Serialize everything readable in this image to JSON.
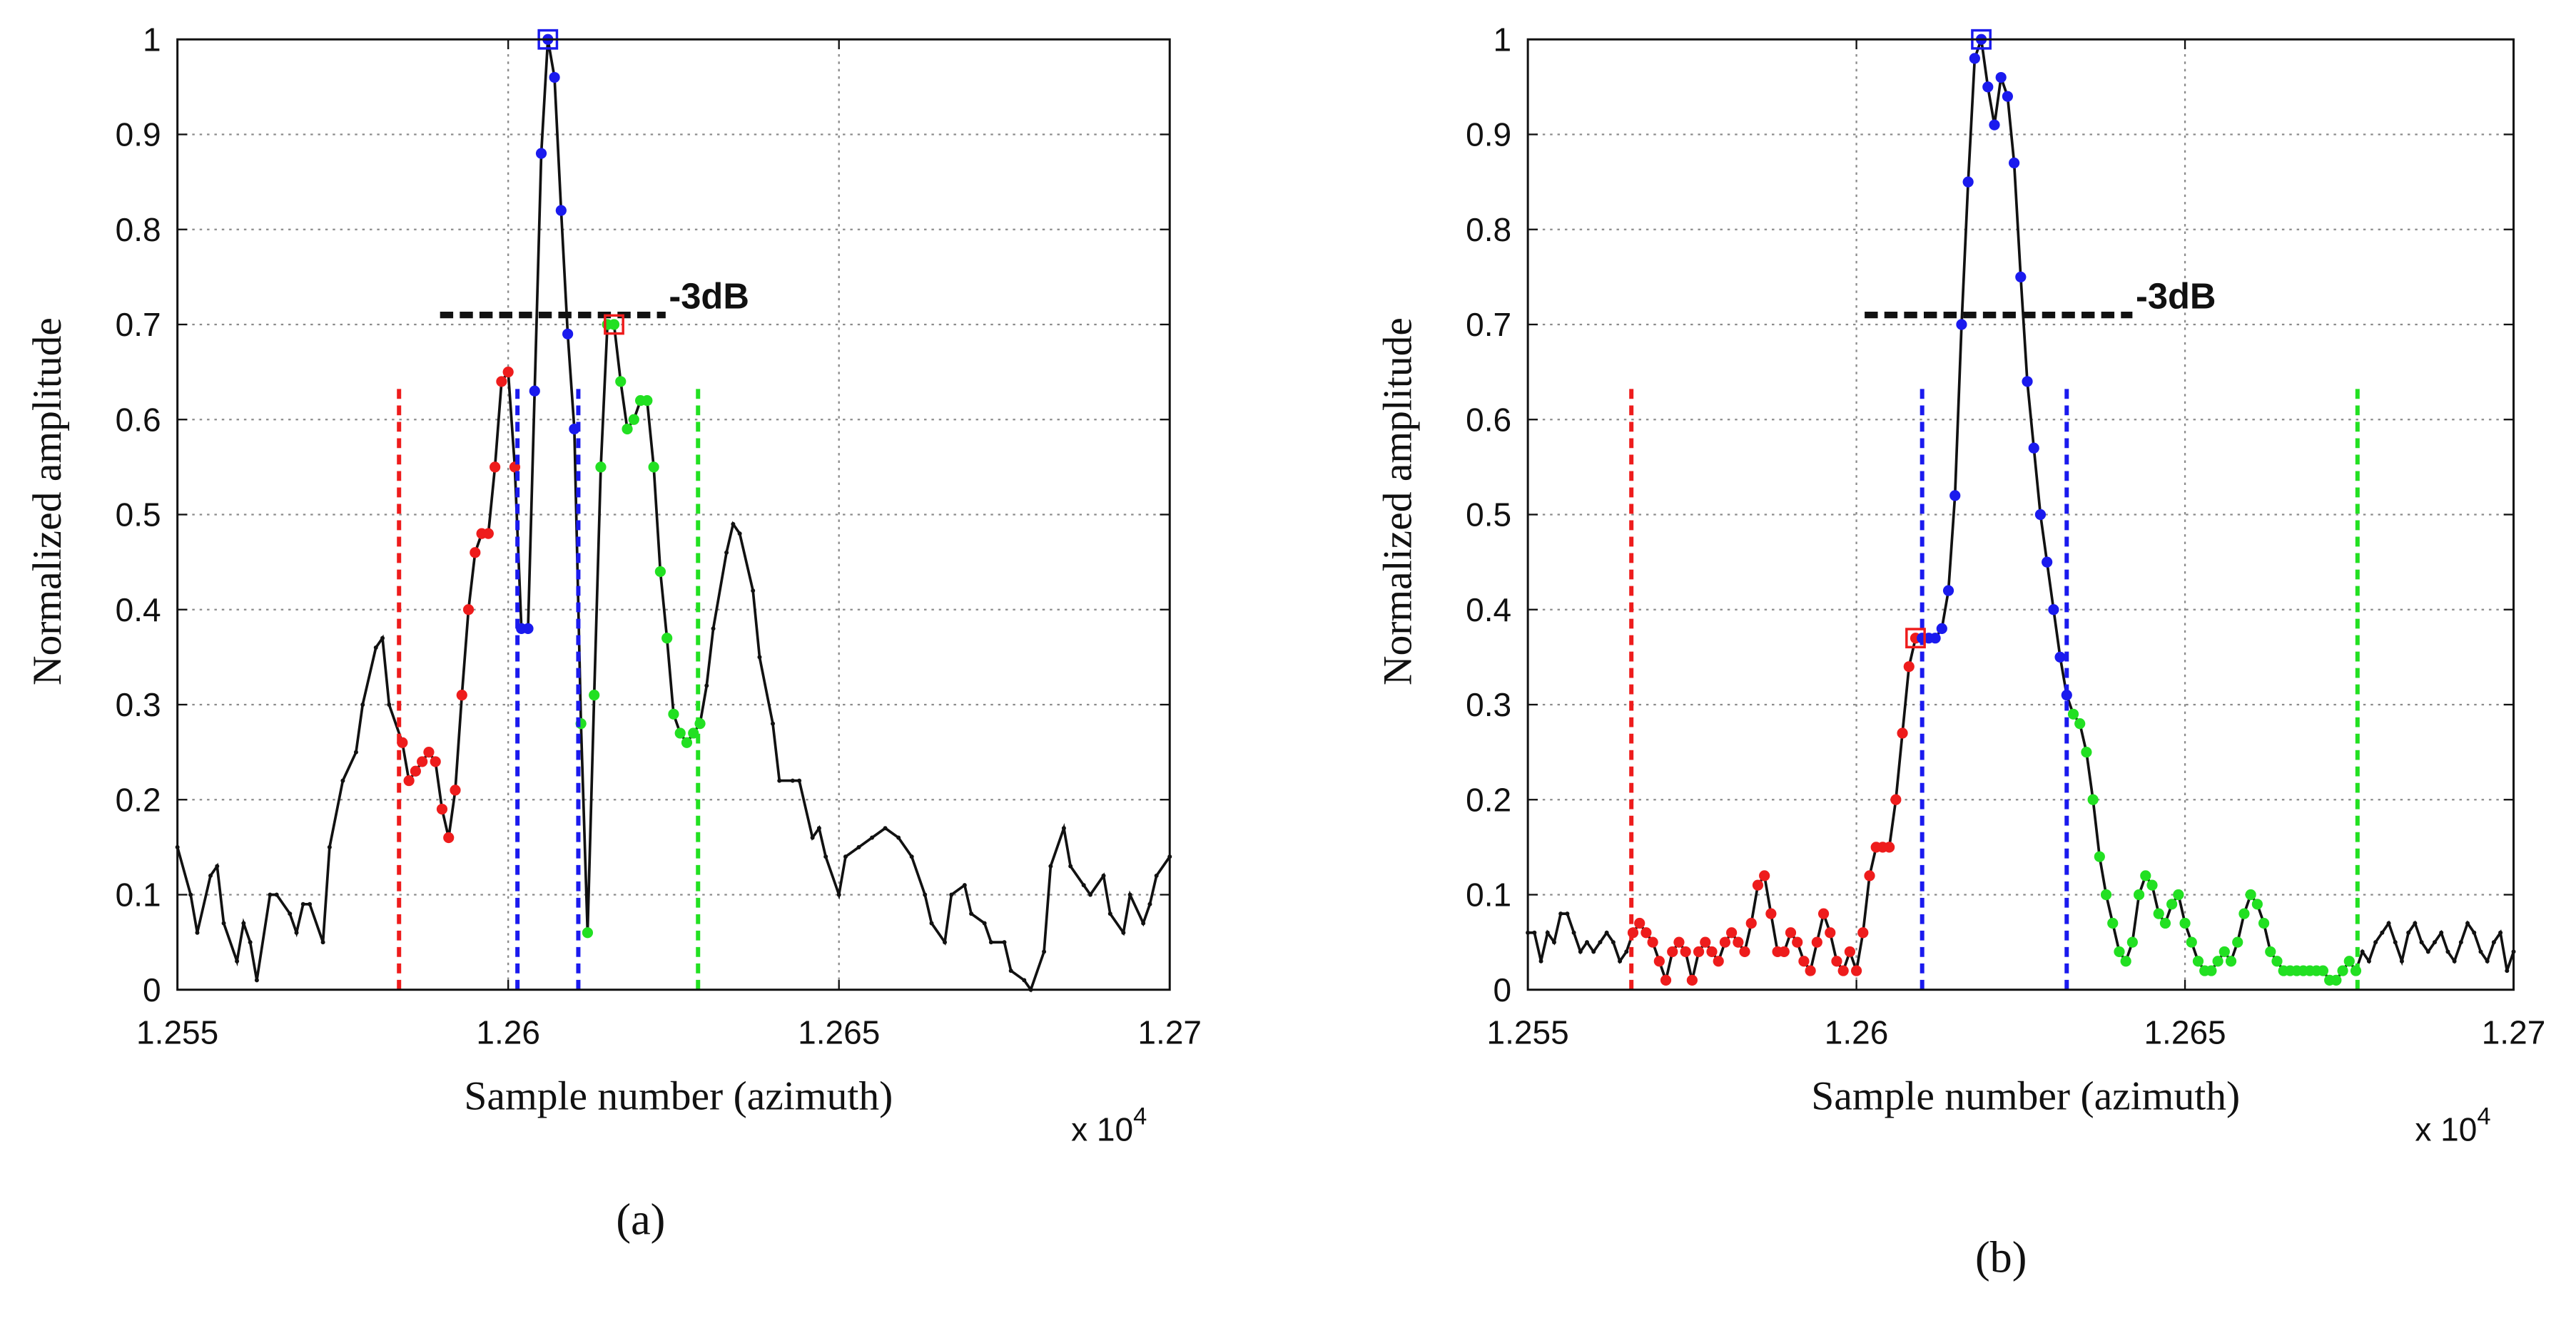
{
  "chart_data": [
    {
      "type": "line",
      "panel_label": "(a)",
      "xlabel": "Sample number (azimuth)",
      "ylabel": "Normalized amplitude",
      "x_multiplier": {
        "base": "x 10",
        "exponent": "4"
      },
      "xlim": [
        12550,
        12700
      ],
      "ylim": [
        0,
        1
      ],
      "xticks": [
        {
          "value": 12550,
          "label": "1.255"
        },
        {
          "value": 12600,
          "label": "1.26"
        },
        {
          "value": 12650,
          "label": "1.265"
        },
        {
          "value": 12700,
          "label": "1.27"
        }
      ],
      "yticks": [
        0,
        0.1,
        0.2,
        0.3,
        0.4,
        0.5,
        0.6,
        0.7,
        0.8,
        0.9,
        1
      ],
      "grid": true,
      "color": "#111111",
      "x": [
        12550,
        12552,
        12553,
        12555,
        12556,
        12557,
        12559,
        12560,
        12561,
        12562,
        12564,
        12565,
        12567,
        12568,
        12569,
        12570,
        12572,
        12573,
        12575,
        12577,
        12578,
        12580,
        12581,
        12582,
        12584,
        12585,
        12586,
        12587,
        12588,
        12589,
        12590,
        12591,
        12592,
        12593,
        12594,
        12595,
        12596,
        12597,
        12598,
        12599,
        12600,
        12601,
        12602,
        12603,
        12604,
        12605,
        12606,
        12607,
        12608,
        12609,
        12610,
        12611,
        12612,
        12613,
        12614,
        12615,
        12616,
        12617,
        12618,
        12619,
        12620,
        12621,
        12622,
        12623,
        12624,
        12625,
        12626,
        12627,
        12628,
        12629,
        12630,
        12631,
        12633,
        12634,
        12635,
        12637,
        12638,
        12640,
        12641,
        12643,
        12644,
        12646,
        12647,
        12648,
        12650,
        12651,
        12653,
        12655,
        12657,
        12659,
        12661,
        12663,
        12664,
        12666,
        12667,
        12669,
        12670,
        12672,
        12673,
        12675,
        12676,
        12678,
        12679,
        12681,
        12682,
        12684,
        12685,
        12687,
        12688,
        12690,
        12691,
        12693,
        12694,
        12696,
        12697,
        12698,
        12700
      ],
      "values": [
        0.15,
        0.1,
        0.06,
        0.12,
        0.13,
        0.07,
        0.03,
        0.07,
        0.05,
        0.01,
        0.1,
        0.1,
        0.08,
        0.06,
        0.09,
        0.09,
        0.05,
        0.15,
        0.22,
        0.25,
        0.3,
        0.36,
        0.37,
        0.3,
        0.26,
        0.22,
        0.23,
        0.24,
        0.25,
        0.24,
        0.19,
        0.16,
        0.21,
        0.31,
        0.4,
        0.46,
        0.48,
        0.48,
        0.55,
        0.64,
        0.65,
        0.55,
        0.38,
        0.38,
        0.63,
        0.88,
        1.0,
        0.96,
        0.82,
        0.69,
        0.59,
        0.28,
        0.06,
        0.31,
        0.55,
        0.7,
        0.7,
        0.64,
        0.59,
        0.6,
        0.62,
        0.62,
        0.55,
        0.44,
        0.37,
        0.29,
        0.27,
        0.26,
        0.27,
        0.28,
        0.32,
        0.38,
        0.46,
        0.49,
        0.48,
        0.42,
        0.35,
        0.28,
        0.22,
        0.22,
        0.22,
        0.16,
        0.17,
        0.14,
        0.1,
        0.14,
        0.15,
        0.16,
        0.17,
        0.16,
        0.14,
        0.1,
        0.07,
        0.05,
        0.1,
        0.11,
        0.08,
        0.07,
        0.05,
        0.05,
        0.02,
        0.01,
        0,
        0.04,
        0.13,
        0.17,
        0.13,
        0.11,
        0.1,
        0.12,
        0.08,
        0.06,
        0.1,
        0.07,
        0.09,
        0.12,
        0.14
      ],
      "point_groups": [
        {
          "color": "#ee1c1c",
          "x": [
            12584,
            12585,
            12586,
            12587,
            12588,
            12589,
            12590,
            12591,
            12592,
            12593,
            12594,
            12595,
            12596,
            12597,
            12598,
            12599,
            12600,
            12601
          ],
          "values": [
            0.26,
            0.22,
            0.23,
            0.24,
            0.25,
            0.24,
            0.19,
            0.16,
            0.21,
            0.31,
            0.4,
            0.46,
            0.48,
            0.48,
            0.55,
            0.64,
            0.65,
            0.55
          ]
        },
        {
          "color": "#1a1aee",
          "x": [
            12602,
            12603,
            12604,
            12605,
            12606,
            12607,
            12608,
            12609,
            12610
          ],
          "values": [
            0.38,
            0.38,
            0.63,
            0.88,
            1.0,
            0.96,
            0.82,
            0.69,
            0.59
          ]
        },
        {
          "color": "#22e022",
          "x": [
            12611,
            12612,
            12613,
            12614,
            12615,
            12616,
            12617,
            12618,
            12619,
            12620,
            12621,
            12622,
            12623,
            12624,
            12625,
            12626,
            12627,
            12628,
            12629
          ],
          "values": [
            0.28,
            0.06,
            0.31,
            0.55,
            0.7,
            0.7,
            0.64,
            0.59,
            0.6,
            0.62,
            0.62,
            0.55,
            0.44,
            0.37,
            0.29,
            0.27,
            0.26,
            0.27,
            0.28
          ]
        }
      ],
      "boundaries": [
        {
          "color": "#ee1c1c",
          "x": 12583.5,
          "top": 0.635
        },
        {
          "color": "#1a1aee",
          "x": 12601.4,
          "top": 0.635
        },
        {
          "color": "#1a1aee",
          "x": 12610.6,
          "top": 0.635
        },
        {
          "color": "#22e022",
          "x": 12628.7,
          "top": 0.635
        }
      ],
      "threshold": {
        "label": "-3dB",
        "value": 0.71,
        "x": [
          12589.7,
          12623.8
        ]
      },
      "peaks": [
        {
          "color": "#1a1aee",
          "x": 12606,
          "value": 1.0
        },
        {
          "color": "#ee1c1c",
          "x": 12616,
          "value": 0.7
        }
      ]
    },
    {
      "type": "line",
      "panel_label": "(b)",
      "xlabel": "Sample number (azimuth)",
      "ylabel": "Normalized amplitude",
      "x_multiplier": {
        "base": "x 10",
        "exponent": "4"
      },
      "xlim": [
        12550,
        12700
      ],
      "ylim": [
        0,
        1
      ],
      "xticks": [
        {
          "value": 12550,
          "label": "1.255"
        },
        {
          "value": 12600,
          "label": "1.26"
        },
        {
          "value": 12650,
          "label": "1.265"
        },
        {
          "value": 12700,
          "label": "1.27"
        }
      ],
      "yticks": [
        0,
        0.1,
        0.2,
        0.3,
        0.4,
        0.5,
        0.6,
        0.7,
        0.8,
        0.9,
        1
      ],
      "grid": true,
      "color": "#111111",
      "x": [
        12550,
        12551,
        12552,
        12553,
        12554,
        12555,
        12556,
        12557,
        12558,
        12559,
        12560,
        12561,
        12562,
        12563,
        12564,
        12565,
        12566,
        12567,
        12568,
        12569,
        12570,
        12571,
        12572,
        12573,
        12574,
        12575,
        12576,
        12577,
        12578,
        12579,
        12580,
        12581,
        12582,
        12583,
        12584,
        12585,
        12586,
        12587,
        12588,
        12589,
        12590,
        12591,
        12592,
        12593,
        12594,
        12595,
        12596,
        12597,
        12598,
        12599,
        12600,
        12601,
        12602,
        12603,
        12604,
        12605,
        12606,
        12607,
        12608,
        12609,
        12610,
        12611,
        12612,
        12613,
        12614,
        12615,
        12616,
        12617,
        12618,
        12619,
        12620,
        12621,
        12622,
        12623,
        12624,
        12625,
        12626,
        12627,
        12628,
        12629,
        12630,
        12631,
        12632,
        12633,
        12634,
        12635,
        12636,
        12637,
        12638,
        12639,
        12640,
        12641,
        12642,
        12643,
        12644,
        12645,
        12646,
        12647,
        12648,
        12649,
        12650,
        12651,
        12652,
        12653,
        12654,
        12655,
        12656,
        12657,
        12658,
        12659,
        12660,
        12661,
        12662,
        12663,
        12664,
        12665,
        12666,
        12667,
        12668,
        12669,
        12670,
        12671,
        12672,
        12673,
        12674,
        12675,
        12676,
        12677,
        12678,
        12679,
        12680,
        12681,
        12682,
        12683,
        12684,
        12685,
        12686,
        12687,
        12688,
        12689,
        12690,
        12691,
        12692,
        12693,
        12694,
        12695,
        12696,
        12697,
        12698,
        12699,
        12700
      ],
      "values": [
        0.06,
        0.06,
        0.03,
        0.06,
        0.05,
        0.08,
        0.08,
        0.06,
        0.04,
        0.05,
        0.04,
        0.05,
        0.06,
        0.05,
        0.03,
        0.04,
        0.06,
        0.07,
        0.06,
        0.05,
        0.03,
        0.01,
        0.04,
        0.05,
        0.04,
        0.01,
        0.04,
        0.05,
        0.04,
        0.03,
        0.05,
        0.06,
        0.05,
        0.04,
        0.07,
        0.11,
        0.12,
        0.08,
        0.04,
        0.04,
        0.06,
        0.05,
        0.03,
        0.02,
        0.05,
        0.08,
        0.06,
        0.03,
        0.02,
        0.04,
        0.02,
        0.06,
        0.12,
        0.15,
        0.15,
        0.15,
        0.2,
        0.27,
        0.34,
        0.37,
        0.37,
        0.37,
        0.37,
        0.38,
        0.42,
        0.52,
        0.7,
        0.85,
        0.98,
        1.0,
        0.95,
        0.91,
        0.96,
        0.94,
        0.87,
        0.75,
        0.64,
        0.57,
        0.5,
        0.45,
        0.4,
        0.35,
        0.31,
        0.29,
        0.28,
        0.25,
        0.2,
        0.14,
        0.1,
        0.07,
        0.04,
        0.03,
        0.05,
        0.1,
        0.12,
        0.11,
        0.08,
        0.07,
        0.09,
        0.1,
        0.07,
        0.05,
        0.03,
        0.02,
        0.02,
        0.03,
        0.04,
        0.03,
        0.05,
        0.08,
        0.1,
        0.09,
        0.07,
        0.04,
        0.03,
        0.02,
        0.02,
        0.02,
        0.02,
        0.02,
        0.02,
        0.02,
        0.01,
        0.01,
        0.02,
        0.03,
        0.02,
        0.04,
        0.03,
        0.05,
        0.06,
        0.07,
        0.05,
        0.03,
        0.06,
        0.07,
        0.05,
        0.04,
        0.05,
        0.06,
        0.04,
        0.03,
        0.05,
        0.07,
        0.06,
        0.04,
        0.03,
        0.05,
        0.06,
        0.02,
        0.04
      ],
      "point_groups": [
        {
          "color": "#ee1c1c",
          "x": [
            12566,
            12567,
            12568,
            12569,
            12570,
            12571,
            12572,
            12573,
            12574,
            12575,
            12576,
            12577,
            12578,
            12579,
            12580,
            12581,
            12582,
            12583,
            12584,
            12585,
            12586,
            12587,
            12588,
            12589,
            12590,
            12591,
            12592,
            12593,
            12594,
            12595,
            12596,
            12597,
            12598,
            12599,
            12600,
            12601,
            12602,
            12603,
            12604,
            12605,
            12606,
            12607,
            12608,
            12609
          ],
          "values": [
            0.06,
            0.07,
            0.06,
            0.05,
            0.03,
            0.01,
            0.04,
            0.05,
            0.04,
            0.01,
            0.04,
            0.05,
            0.04,
            0.03,
            0.05,
            0.06,
            0.05,
            0.04,
            0.07,
            0.11,
            0.12,
            0.08,
            0.04,
            0.04,
            0.06,
            0.05,
            0.03,
            0.02,
            0.05,
            0.08,
            0.06,
            0.03,
            0.02,
            0.04,
            0.02,
            0.06,
            0.12,
            0.15,
            0.15,
            0.15,
            0.2,
            0.27,
            0.34,
            0.37
          ]
        },
        {
          "color": "#1a1aee",
          "x": [
            12610,
            12611,
            12612,
            12613,
            12614,
            12615,
            12616,
            12617,
            12618,
            12619,
            12620,
            12621,
            12622,
            12623,
            12624,
            12625,
            12626,
            12627,
            12628,
            12629,
            12630,
            12631,
            12632
          ],
          "values": [
            0.37,
            0.37,
            0.37,
            0.38,
            0.42,
            0.52,
            0.7,
            0.85,
            0.98,
            1.0,
            0.95,
            0.91,
            0.96,
            0.94,
            0.87,
            0.75,
            0.64,
            0.57,
            0.5,
            0.45,
            0.4,
            0.35,
            0.31
          ]
        },
        {
          "color": "#22e022",
          "x": [
            12633,
            12634,
            12635,
            12636,
            12637,
            12638,
            12639,
            12640,
            12641,
            12642,
            12643,
            12644,
            12645,
            12646,
            12647,
            12648,
            12649,
            12650,
            12651,
            12652,
            12653,
            12654,
            12655,
            12656,
            12657,
            12658,
            12659,
            12660,
            12661,
            12662,
            12663,
            12664,
            12665,
            12666,
            12667,
            12668,
            12669,
            12670,
            12671,
            12672,
            12673,
            12674,
            12675,
            12676
          ],
          "values": [
            0.29,
            0.28,
            0.25,
            0.2,
            0.14,
            0.1,
            0.07,
            0.04,
            0.03,
            0.05,
            0.1,
            0.12,
            0.11,
            0.08,
            0.07,
            0.09,
            0.1,
            0.07,
            0.05,
            0.03,
            0.02,
            0.02,
            0.03,
            0.04,
            0.03,
            0.05,
            0.08,
            0.1,
            0.09,
            0.07,
            0.04,
            0.03,
            0.02,
            0.02,
            0.02,
            0.02,
            0.02,
            0.02,
            0.02,
            0.01,
            0.01,
            0.02,
            0.03,
            0.02
          ]
        }
      ],
      "boundaries": [
        {
          "color": "#ee1c1c",
          "x": 12565.75,
          "top": 0.635
        },
        {
          "color": "#1a1aee",
          "x": 12610,
          "top": 0.635
        },
        {
          "color": "#1a1aee",
          "x": 12632,
          "top": 0.635
        },
        {
          "color": "#22e022",
          "x": 12676.25,
          "top": 0.635
        }
      ],
      "threshold": {
        "label": "-3dB",
        "value": 0.71,
        "x": [
          12601.25,
          12642
        ]
      },
      "peaks": [
        {
          "color": "#1a1aee",
          "x": 12619,
          "value": 1.0
        },
        {
          "color": "#ee1c1c",
          "x": 12609,
          "value": 0.37
        }
      ]
    }
  ]
}
